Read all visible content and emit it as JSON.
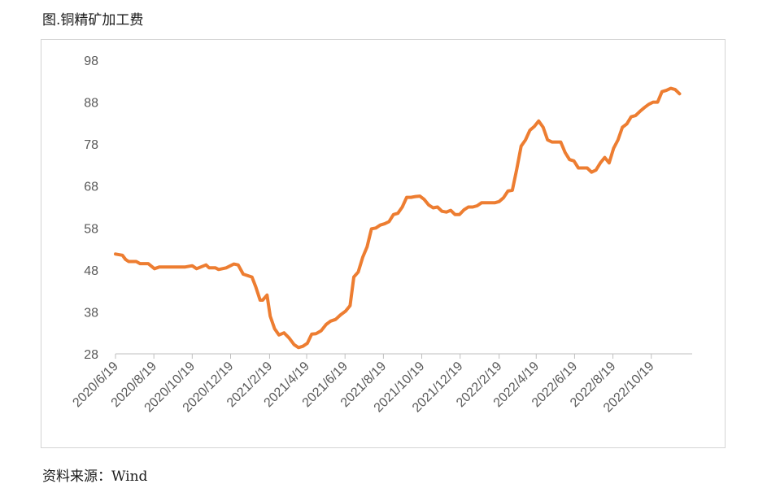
{
  "figure": {
    "title": "图.铜精矿加工费",
    "source": "资料来源：Wind"
  },
  "colors": {
    "series": "#ED7D31",
    "axis": "#bfbfbf",
    "text": "#595959"
  },
  "chart_data": {
    "type": "line",
    "title": "",
    "xlabel": "",
    "ylabel": "",
    "ylim": [
      28,
      98
    ],
    "yticks": [
      28,
      38,
      48,
      58,
      68,
      78,
      88,
      98
    ],
    "grid": false,
    "legend": "none",
    "xlim": [
      "2020-06-19",
      "2022-12-23"
    ],
    "xtick_labels": [
      "2020/6/19",
      "2020/8/19",
      "2020/10/19",
      "2020/12/19",
      "2021/2/19",
      "2021/4/19",
      "2021/6/19",
      "2021/8/19",
      "2021/10/19",
      "2021/12/19",
      "2022/2/19",
      "2022/4/19",
      "2022/6/19",
      "2022/8/19",
      "2022/10/19"
    ],
    "xtick_dates": [
      "2020-06-19",
      "2020-08-19",
      "2020-10-19",
      "2020-12-19",
      "2021-02-19",
      "2021-04-19",
      "2021-06-19",
      "2021-08-19",
      "2021-10-19",
      "2021-12-19",
      "2022-02-19",
      "2022-04-19",
      "2022-06-19",
      "2022-08-19",
      "2022-10-19"
    ],
    "series": [
      {
        "points": [
          [
            "2020-06-19",
            51.8
          ],
          [
            "2020-06-30",
            51.5
          ],
          [
            "2020-07-05",
            50.5
          ],
          [
            "2020-07-10",
            50.0
          ],
          [
            "2020-07-22",
            50.0
          ],
          [
            "2020-07-28",
            49.5
          ],
          [
            "2020-08-10",
            49.5
          ],
          [
            "2020-08-20",
            48.3
          ],
          [
            "2020-08-28",
            48.7
          ],
          [
            "2020-09-15",
            48.7
          ],
          [
            "2020-10-08",
            48.7
          ],
          [
            "2020-10-19",
            49.0
          ],
          [
            "2020-10-26",
            48.3
          ],
          [
            "2020-11-10",
            49.2
          ],
          [
            "2020-11-15",
            48.5
          ],
          [
            "2020-11-25",
            48.5
          ],
          [
            "2020-11-30",
            48.1
          ],
          [
            "2020-12-12",
            48.5
          ],
          [
            "2020-12-24",
            49.4
          ],
          [
            "2020-12-31",
            49.2
          ],
          [
            "2021-01-08",
            47.0
          ],
          [
            "2021-01-22",
            46.3
          ],
          [
            "2021-01-28",
            44.0
          ],
          [
            "2021-02-04",
            40.8
          ],
          [
            "2021-02-08",
            40.8
          ],
          [
            "2021-02-15",
            42.0
          ],
          [
            "2021-02-20",
            37.0
          ],
          [
            "2021-02-27",
            34.0
          ],
          [
            "2021-03-06",
            32.5
          ],
          [
            "2021-03-14",
            33.0
          ],
          [
            "2021-03-22",
            31.8
          ],
          [
            "2021-03-30",
            30.2
          ],
          [
            "2021-04-06",
            29.5
          ],
          [
            "2021-04-13",
            29.8
          ],
          [
            "2021-04-20",
            30.5
          ],
          [
            "2021-04-27",
            32.7
          ],
          [
            "2021-05-04",
            32.8
          ],
          [
            "2021-05-12",
            33.5
          ],
          [
            "2021-05-20",
            35.0
          ],
          [
            "2021-05-27",
            35.8
          ],
          [
            "2021-06-04",
            36.2
          ],
          [
            "2021-06-12",
            37.3
          ],
          [
            "2021-06-20",
            38.2
          ],
          [
            "2021-06-27",
            39.5
          ],
          [
            "2021-07-03",
            46.3
          ],
          [
            "2021-07-10",
            47.5
          ],
          [
            "2021-07-17",
            51.0
          ],
          [
            "2021-07-24",
            53.5
          ],
          [
            "2021-07-31",
            57.8
          ],
          [
            "2021-08-07",
            58.0
          ],
          [
            "2021-08-14",
            58.7
          ],
          [
            "2021-08-21",
            59.0
          ],
          [
            "2021-08-28",
            59.5
          ],
          [
            "2021-09-04",
            61.2
          ],
          [
            "2021-09-11",
            61.5
          ],
          [
            "2021-09-18",
            63.0
          ],
          [
            "2021-09-25",
            65.3
          ],
          [
            "2021-10-02",
            65.3
          ],
          [
            "2021-10-09",
            65.5
          ],
          [
            "2021-10-16",
            65.6
          ],
          [
            "2021-10-23",
            64.8
          ],
          [
            "2021-10-30",
            63.5
          ],
          [
            "2021-11-06",
            62.8
          ],
          [
            "2021-11-13",
            63.0
          ],
          [
            "2021-11-20",
            62.0
          ],
          [
            "2021-11-27",
            61.8
          ],
          [
            "2021-12-04",
            62.2
          ],
          [
            "2021-12-11",
            61.2
          ],
          [
            "2021-12-18",
            61.2
          ],
          [
            "2021-12-25",
            62.3
          ],
          [
            "2022-01-01",
            63.0
          ],
          [
            "2022-01-08",
            63.0
          ],
          [
            "2022-01-15",
            63.3
          ],
          [
            "2022-01-22",
            64.0
          ],
          [
            "2022-01-29",
            64.0
          ],
          [
            "2022-02-05",
            64.0
          ],
          [
            "2022-02-12",
            64.0
          ],
          [
            "2022-02-19",
            64.3
          ],
          [
            "2022-02-26",
            65.2
          ],
          [
            "2022-03-05",
            66.8
          ],
          [
            "2022-03-12",
            67.0
          ],
          [
            "2022-03-19",
            72.0
          ],
          [
            "2022-03-26",
            77.5
          ],
          [
            "2022-04-02",
            79.0
          ],
          [
            "2022-04-09",
            81.3
          ],
          [
            "2022-04-16",
            82.2
          ],
          [
            "2022-04-23",
            83.5
          ],
          [
            "2022-04-30",
            82.0
          ],
          [
            "2022-05-07",
            79.0
          ],
          [
            "2022-05-14",
            78.5
          ],
          [
            "2022-05-21",
            78.5
          ],
          [
            "2022-05-28",
            78.5
          ],
          [
            "2022-06-04",
            76.0
          ],
          [
            "2022-06-11",
            74.3
          ],
          [
            "2022-06-18",
            74.0
          ],
          [
            "2022-06-25",
            72.3
          ],
          [
            "2022-07-02",
            72.3
          ],
          [
            "2022-07-09",
            72.3
          ],
          [
            "2022-07-16",
            71.3
          ],
          [
            "2022-07-23",
            71.8
          ],
          [
            "2022-07-30",
            73.5
          ],
          [
            "2022-08-06",
            74.8
          ],
          [
            "2022-08-13",
            73.5
          ],
          [
            "2022-08-20",
            77.0
          ],
          [
            "2022-08-27",
            79.0
          ],
          [
            "2022-09-03",
            82.0
          ],
          [
            "2022-09-10",
            82.8
          ],
          [
            "2022-09-17",
            84.5
          ],
          [
            "2022-09-24",
            84.8
          ],
          [
            "2022-10-01",
            85.8
          ],
          [
            "2022-10-08",
            86.7
          ],
          [
            "2022-10-15",
            87.5
          ],
          [
            "2022-10-22",
            88.0
          ],
          [
            "2022-10-29",
            88.0
          ],
          [
            "2022-11-05",
            90.5
          ],
          [
            "2022-11-12",
            90.8
          ],
          [
            "2022-11-19",
            91.3
          ],
          [
            "2022-11-26",
            91.0
          ],
          [
            "2022-12-03",
            90.0
          ]
        ]
      }
    ]
  }
}
